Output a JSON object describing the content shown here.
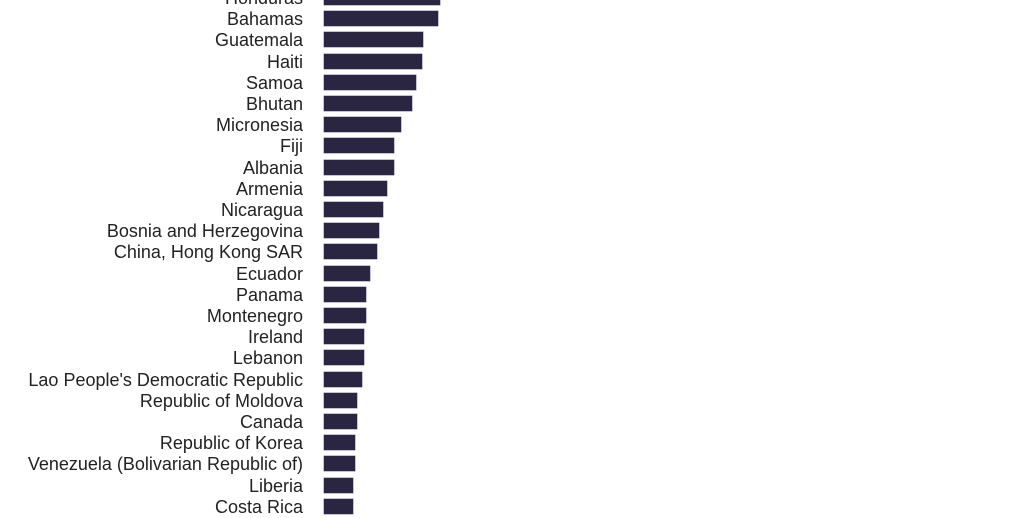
{
  "chart_data": {
    "type": "bar",
    "orientation": "horizontal",
    "title": "",
    "xlabel": "",
    "ylabel": "",
    "grid": false,
    "legend": null,
    "bar_color": "#2a2540",
    "note": "Values are relative bar lengths in pixels measured from the baseline (no axis shown); first row partially cropped at top.",
    "categories": [
      "Honduras",
      "Bahamas",
      "Guatemala",
      "Haiti",
      "Samoa",
      "Bhutan",
      "Micronesia",
      "Fiji",
      "Albania",
      "Armenia",
      "Nicaragua",
      "Bosnia and Herzegovina",
      "China, Hong Kong SAR",
      "Ecuador",
      "Panama",
      "Montenegro",
      "Ireland",
      "Lebanon",
      "Lao People's Democratic Republic",
      "Republic of Moldova",
      "Canada",
      "Republic of Korea",
      "Venezuela (Bolivarian Republic of)",
      "Liberia",
      "Costa Rica"
    ],
    "values": [
      116,
      114,
      99,
      98,
      92,
      88,
      77,
      70,
      70,
      63,
      59,
      55,
      53,
      46,
      42,
      42,
      40,
      40,
      38,
      33,
      33,
      31,
      31,
      29,
      29
    ]
  }
}
